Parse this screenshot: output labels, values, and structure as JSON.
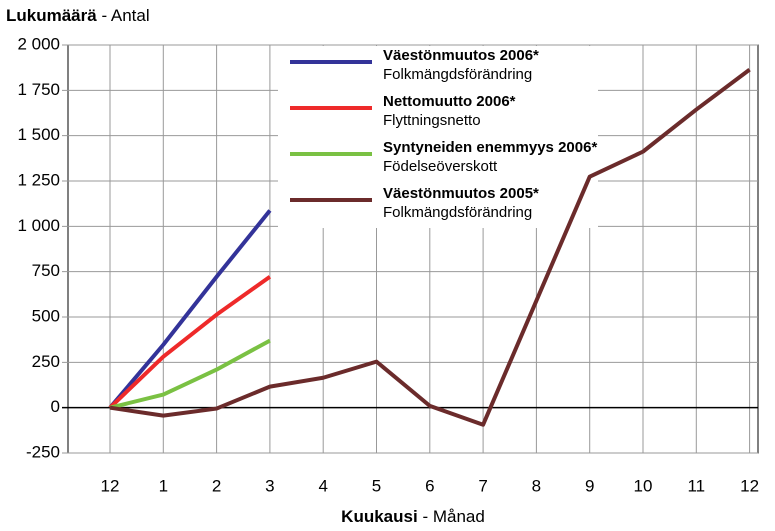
{
  "chart_data": {
    "type": "line",
    "ylabel": {
      "bold": "Lukumäärä",
      "rest": "- Antal"
    },
    "xlabel": {
      "bold": "Kuukausi",
      "rest": "- Månad"
    },
    "categories": [
      "12",
      "1",
      "2",
      "3",
      "4",
      "5",
      "6",
      "7",
      "8",
      "9",
      "10",
      "11",
      "12"
    ],
    "ylim": [
      -250,
      2000
    ],
    "yticks": [
      -250,
      0,
      250,
      500,
      750,
      {
        "value": 1000,
        "label": "1 000"
      },
      {
        "value": 1250,
        "label": "1 250"
      },
      {
        "value": 1500,
        "label": "1 500"
      },
      {
        "value": 1750,
        "label": "1 750"
      },
      {
        "value": 2000,
        "label": "2 000"
      }
    ],
    "grid": true,
    "series": [
      {
        "name": "Väestönmuutos 2006*",
        "name_sv": "Folkmängdsförändring",
        "color": "#333399",
        "values": [
          0,
          347,
          722,
          1087,
          null,
          null,
          null,
          null,
          null,
          null,
          null,
          null,
          null
        ]
      },
      {
        "name": "Nettomuutto 2006*",
        "name_sv": "Flyttningsnetto",
        "color": "#ee2a2a",
        "values": [
          0,
          281,
          513,
          722,
          null,
          null,
          null,
          null,
          null,
          null,
          null,
          null,
          null
        ]
      },
      {
        "name": "Syntyneiden enemmyys 2006*",
        "name_sv": "Födelseöverskott",
        "color": "#7ac143",
        "values": [
          0,
          72,
          210,
          370,
          null,
          null,
          null,
          null,
          null,
          null,
          null,
          null,
          null
        ]
      },
      {
        "name": "Väestönmuutos 2005*",
        "name_sv": "Folkmängdsförändring",
        "color": "#6b2b2b",
        "values": [
          0,
          -44,
          -5,
          116,
          165,
          254,
          10,
          -94,
          590,
          1274,
          1412,
          1644,
          1864
        ]
      }
    ]
  }
}
